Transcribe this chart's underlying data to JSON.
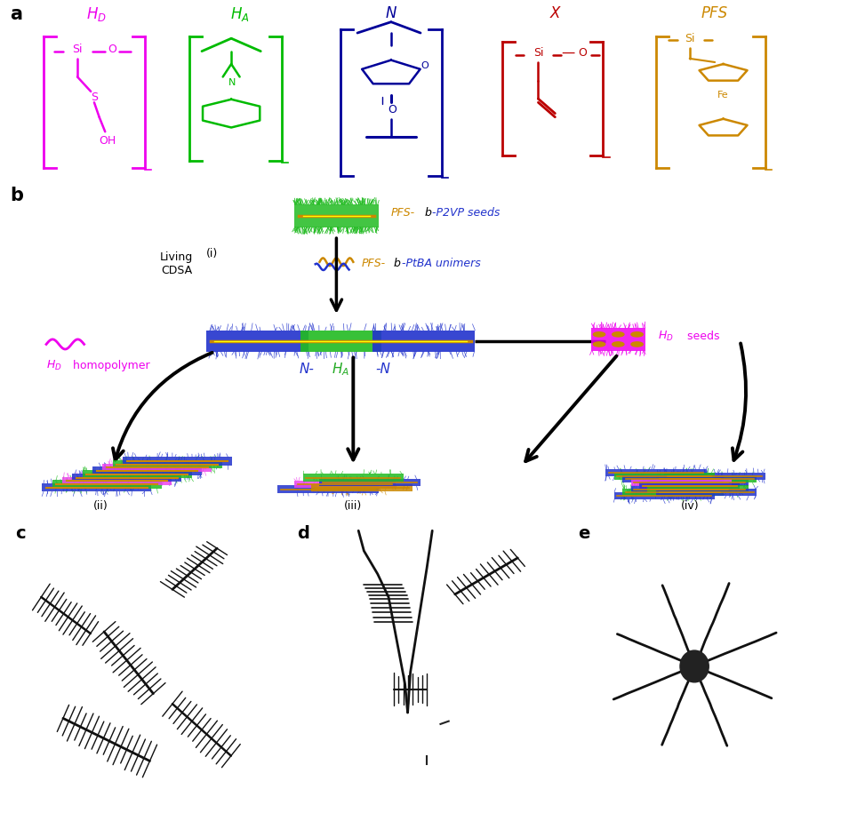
{
  "panel_labels": [
    "a",
    "b",
    "c",
    "d",
    "e"
  ],
  "chem_colors": [
    "#EE00EE",
    "#00BB00",
    "#000099",
    "#BB0000",
    "#CC8800"
  ],
  "chem_labels": [
    "H_D",
    "H_A",
    "N",
    "X",
    "PFS"
  ],
  "background_color": "#FFFFFF",
  "gray_tem": "#BBBBBB",
  "arrow_color": "#111111",
  "orange_core": "#CC8800",
  "yellow_core": "#DDDD00",
  "green_corona": "#22BB22",
  "blue_corona": "#2233CC",
  "magenta_block": "#EE00EE"
}
